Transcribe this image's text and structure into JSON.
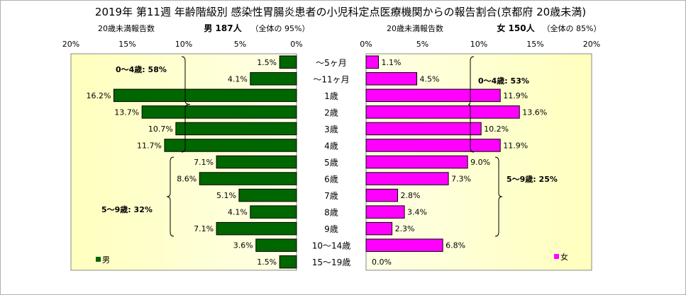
{
  "title": "2019年 第11週 年齢階級別 感染性胃腸炎患者の小児科定点医療機関からの報告割合(京都府 20歳未満)",
  "chart_data": {
    "type": "bar",
    "categories": [
      "～5ヶ月",
      "～11ヶ月",
      "1歳",
      "2歳",
      "3歳",
      "4歳",
      "5歳",
      "6歳",
      "7歳",
      "8歳",
      "9歳",
      "10～14歳",
      "15～19歳"
    ],
    "x_tick_labels": [
      "0%",
      "5%",
      "10%",
      "15%",
      "20%"
    ],
    "xlim": [
      0,
      20
    ],
    "male": {
      "header_left": "20歳未満報告数",
      "header_main": "男  187人",
      "header_total": "（全体の  95%）",
      "legend": "男",
      "color": "#006600",
      "values": [
        1.5,
        4.1,
        16.2,
        13.7,
        10.7,
        11.7,
        7.1,
        8.6,
        5.1,
        4.1,
        7.1,
        3.6,
        1.5
      ],
      "value_labels": [
        "1.5%",
        "4.1%",
        "16.2%",
        "13.7%",
        "10.7%",
        "11.7%",
        "7.1%",
        "8.6%",
        "5.1%",
        "4.1%",
        "7.1%",
        "3.6%",
        "1.5%"
      ],
      "group_labels": [
        "0～4歳: 58%",
        "5～9歳: 32%"
      ]
    },
    "female": {
      "header_left": "20歳未満報告数",
      "header_main": "女  150人",
      "header_total": "（全体の  85%）",
      "legend": "女",
      "color": "#ff00ff",
      "values": [
        1.1,
        4.5,
        11.9,
        13.6,
        10.2,
        11.9,
        9.0,
        7.3,
        2.8,
        3.4,
        2.3,
        6.8,
        0.0
      ],
      "value_labels": [
        "1.1%",
        "4.5%",
        "11.9%",
        "13.6%",
        "10.2%",
        "11.9%",
        "9.0%",
        "7.3%",
        "2.8%",
        "3.4%",
        "2.3%",
        "6.8%",
        "0.0%"
      ],
      "group_labels": [
        "0～4歳: 53%",
        "5～9歳: 25%"
      ]
    }
  }
}
